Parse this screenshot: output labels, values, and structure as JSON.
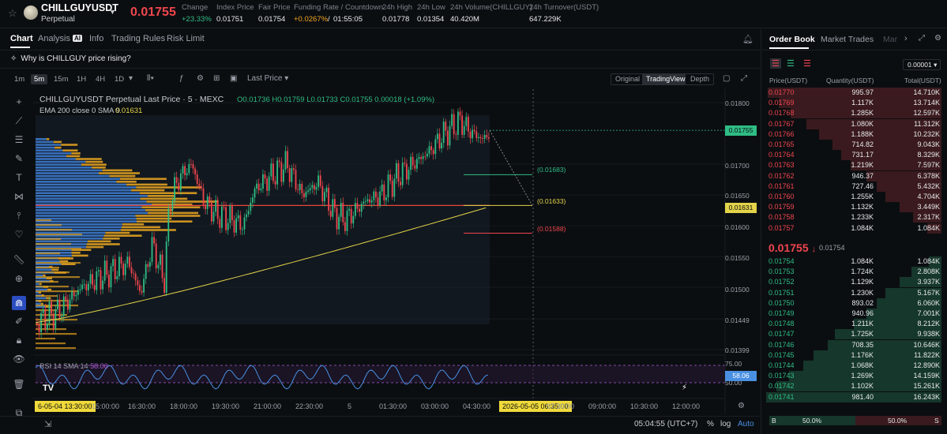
{
  "header": {
    "symbol": "CHILLGUYUSDT",
    "contract_type": "Perpetual",
    "last_price": "0.01755",
    "stats": [
      {
        "label": "Change",
        "value": "+23.33%",
        "color": "green"
      },
      {
        "label": "Index Price",
        "value": "0.01751",
        "color": "plain"
      },
      {
        "label": "Fair Price",
        "value": "0.01754",
        "color": "plain"
      },
      {
        "label": "Funding Rate  /  Countdown",
        "value": "+0.0267%",
        "value2": "01:55:05",
        "color": "orange"
      },
      {
        "label": "24h High",
        "value": "0.01778",
        "color": "plain"
      },
      {
        "label": "24h Low",
        "value": "0.01354",
        "color": "plain"
      },
      {
        "label": "24h Volume(CHILLGUY)",
        "value": "40.420M",
        "color": "plain"
      },
      {
        "label": "24h Turnover(USDT)",
        "value": "647.229K",
        "color": "plain"
      }
    ]
  },
  "tabs": {
    "chart": "Chart",
    "analysis": "Analysis",
    "analysis_badge": "AI",
    "info": "Info",
    "trading_rules": "Trading Rules",
    "risk_limit": "Risk Limit"
  },
  "banner": {
    "text": "Why is CHILLGUY price rising?"
  },
  "toolbar": {
    "timeframes": [
      "1m",
      "5m",
      "15m",
      "1H",
      "4H",
      "1D"
    ],
    "active_timeframe": "5m",
    "price_type": "Last Price",
    "views": [
      "Original",
      "TradingView",
      "Depth"
    ],
    "active_view": "TradingView"
  },
  "chart": {
    "title": "CHILLGUYUSDT Perpetual Last Price · 5 · MEXC",
    "ohlc": "O0.01736 H0.01759 L0.01733 C0.01755 0.00018 (+1.09%)",
    "ema_label": "EMA 200 close 0 SMA 9",
    "ema_value": "0.01631",
    "rsi_label": "RSI 14 SMA 14",
    "rsi_value": "58.06",
    "rsi_tag": "58.06",
    "levels": {
      "upper": "(0.01683)",
      "middle": "(0.01633)",
      "lower": "(0.01588)"
    },
    "price_ticks": [
      "0.01800",
      "0.01700",
      "0.01650",
      "0.01600",
      "0.01550",
      "0.01500",
      "0.01449",
      "0.01399"
    ],
    "price_tags": {
      "last": "0.01755",
      "ema": "0.01631"
    },
    "rsi_ticks": [
      "75.00",
      "50.00"
    ],
    "time_ticks": [
      "15:00:00",
      "16:30:00",
      "18:00:00",
      "19:30:00",
      "21:00:00",
      "22:30:00",
      "5",
      "01:30:00",
      "03:00:00",
      "04:30:00",
      "07:30:00",
      "09:00:00",
      "10:30:00",
      "12:00:00"
    ],
    "time_tags": {
      "left": "6-05-04  13:30:00",
      "right": "2026-05-05  06:35:00"
    },
    "colors": {
      "up": "#2fbd85",
      "down": "#f0464e",
      "ema": "#e2d34a",
      "rsi": "#4a90e2",
      "poc": "#e8473c",
      "vp_up": "#3f7fd6",
      "vp_down": "#e0a020"
    }
  },
  "status": {
    "clock": "05:04:55 (UTC+7)",
    "percent": "%",
    "log": "log",
    "auto": "Auto"
  },
  "orderbook": {
    "tabs": [
      "Order Book",
      "Market Trades",
      "Mar"
    ],
    "precision": "0.00001",
    "columns": {
      "price": "Price(USDT)",
      "quantity": "Quantity(USDT)",
      "total": "Total(USDT)"
    },
    "asks": [
      {
        "price": "0.01770",
        "qty": "995.97",
        "total": "14.710K",
        "depth": 0.99
      },
      {
        "price": "0.01769",
        "qty": "1.117K",
        "total": "13.714K",
        "depth": 0.93
      },
      {
        "price": "0.01768",
        "qty": "1.285K",
        "total": "12.597K",
        "depth": 0.86
      },
      {
        "price": "0.01767",
        "qty": "1.080K",
        "total": "11.312K",
        "depth": 0.77
      },
      {
        "price": "0.01766",
        "qty": "1.188K",
        "total": "10.232K",
        "depth": 0.7
      },
      {
        "price": "0.01765",
        "qty": "714.82",
        "total": "9.043K",
        "depth": 0.62
      },
      {
        "price": "0.01764",
        "qty": "731.17",
        "total": "8.329K",
        "depth": 0.57
      },
      {
        "price": "0.01763",
        "qty": "1.219K",
        "total": "7.597K",
        "depth": 0.52
      },
      {
        "price": "0.01762",
        "qty": "946.37",
        "total": "6.378K",
        "depth": 0.43
      },
      {
        "price": "0.01761",
        "qty": "727.46",
        "total": "5.432K",
        "depth": 0.37
      },
      {
        "price": "0.01760",
        "qty": "1.255K",
        "total": "4.704K",
        "depth": 0.32
      },
      {
        "price": "0.01759",
        "qty": "1.132K",
        "total": "3.449K",
        "depth": 0.24
      },
      {
        "price": "0.01758",
        "qty": "1.233K",
        "total": "2.317K",
        "depth": 0.16
      },
      {
        "price": "0.01757",
        "qty": "1.084K",
        "total": "1.084K",
        "depth": 0.08
      }
    ],
    "mid": {
      "price": "0.01755",
      "arrow": "↓",
      "index": "0.01754"
    },
    "bids": [
      {
        "price": "0.01754",
        "qty": "1.084K",
        "total": "1.084K",
        "depth": 0.07
      },
      {
        "price": "0.01753",
        "qty": "1.724K",
        "total": "2.808K",
        "depth": 0.17
      },
      {
        "price": "0.01752",
        "qty": "1.129K",
        "total": "3.937K",
        "depth": 0.24
      },
      {
        "price": "0.01751",
        "qty": "1.230K",
        "total": "5.167K",
        "depth": 0.32
      },
      {
        "price": "0.01750",
        "qty": "893.02",
        "total": "6.060K",
        "depth": 0.37
      },
      {
        "price": "0.01749",
        "qty": "940.96",
        "total": "7.001K",
        "depth": 0.43
      },
      {
        "price": "0.01748",
        "qty": "1.211K",
        "total": "8.212K",
        "depth": 0.5
      },
      {
        "price": "0.01747",
        "qty": "1.725K",
        "total": "9.938K",
        "depth": 0.61
      },
      {
        "price": "0.01746",
        "qty": "708.35",
        "total": "10.646K",
        "depth": 0.65
      },
      {
        "price": "0.01745",
        "qty": "1.176K",
        "total": "11.822K",
        "depth": 0.73
      },
      {
        "price": "0.01744",
        "qty": "1.068K",
        "total": "12.890K",
        "depth": 0.79
      },
      {
        "price": "0.01743",
        "qty": "1.269K",
        "total": "14.159K",
        "depth": 0.87
      },
      {
        "price": "0.01742",
        "qty": "1.102K",
        "total": "15.261K",
        "depth": 0.94
      },
      {
        "price": "0.01741",
        "qty": "981.40",
        "total": "16.243K",
        "depth": 1.0
      }
    ],
    "ratio": {
      "buy_label": "B",
      "buy": "50.0%",
      "sell": "50.0%",
      "sell_label": "S",
      "buy_fraction": 0.5
    }
  }
}
